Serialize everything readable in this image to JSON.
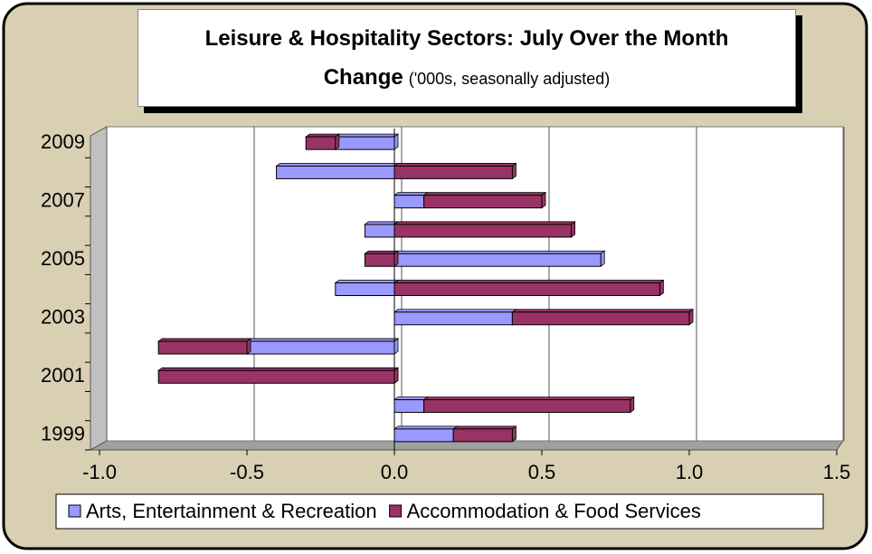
{
  "chart_data": {
    "type": "bar",
    "orientation": "horizontal",
    "stacked": true,
    "title": "Leisure & Hospitality Sectors: July Over the Month Change",
    "subtitle": "('000s, seasonally adjusted)",
    "categories": [
      "1999",
      null,
      "2001",
      null,
      "2003",
      null,
      "2005",
      null,
      "2007",
      null,
      "2009"
    ],
    "series": [
      {
        "name": "Arts, Entertainment & Recreation",
        "color": "#9999ff",
        "values": [
          0.2,
          0.1,
          0,
          -0.5,
          0.4,
          -0.2,
          0.7,
          -0.1,
          0.1,
          -0.4,
          -0.2
        ]
      },
      {
        "name": "Accommodation & Food Services",
        "color": "#993366",
        "values": [
          0.2,
          0.7,
          -0.8,
          -0.3,
          0.6,
          0.9,
          -0.1,
          0.6,
          0.4,
          0.4,
          -0.1
        ]
      }
    ],
    "xlim": [
      -1.0,
      1.5
    ],
    "xticks": [
      {
        "value": -1.0,
        "label": "-1.0"
      },
      -0.5,
      {
        "value": 0.0,
        "label": "0.0"
      },
      0.5,
      {
        "value": 1.0,
        "label": "1.0"
      },
      1.5
    ],
    "grid": true,
    "legend": "bottom"
  }
}
